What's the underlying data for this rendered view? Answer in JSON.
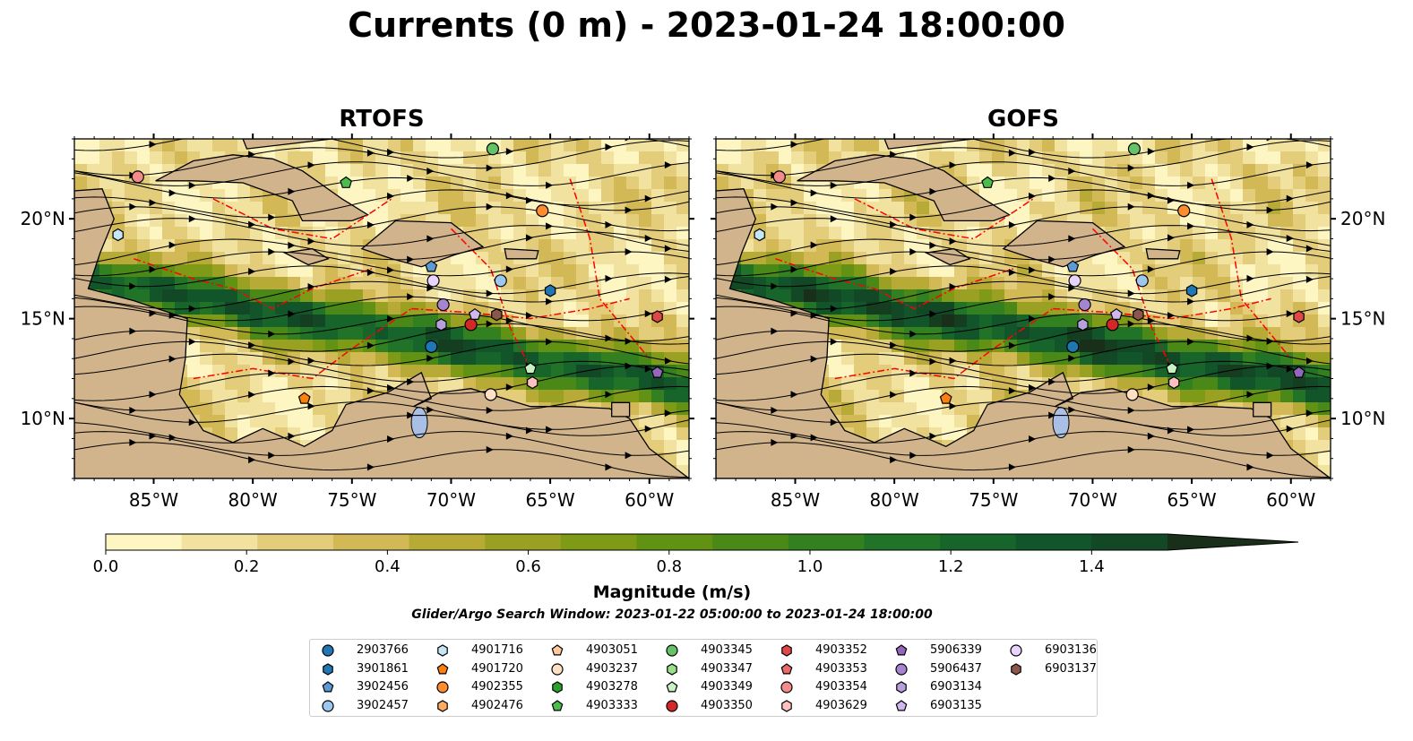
{
  "title": "Currents (0 m) - 2023-01-24 18:00:00",
  "panels": [
    {
      "title": "RTOFS"
    },
    {
      "title": "GOFS"
    }
  ],
  "axes": {
    "lon_ticks": [
      "85°W",
      "80°W",
      "75°W",
      "70°W",
      "65°W",
      "60°W"
    ],
    "lat_ticks": [
      "20°N",
      "15°N",
      "10°N"
    ],
    "lon_range": [
      -89,
      -58
    ],
    "lat_range": [
      7,
      24
    ]
  },
  "colorbar": {
    "title": "Magnitude (m/s)",
    "ticks": [
      "0.0",
      "0.2",
      "0.4",
      "0.6",
      "0.8",
      "1.0",
      "1.2",
      "1.4"
    ],
    "range": [
      0,
      1.5
    ],
    "extend": "max",
    "colors": [
      "#fdf6c3",
      "#f1e2a0",
      "#e3cc7a",
      "#d3b955",
      "#b8aa37",
      "#9aa122",
      "#7e9a17",
      "#629213",
      "#4a8918",
      "#338020",
      "#217328",
      "#17652b",
      "#12552a",
      "#124826",
      "#153d20",
      "#1a2f1a"
    ]
  },
  "search_window": "Glider/Argo Search Window: 2023-01-22 05:00:00 to 2023-01-24 18:00:00",
  "colors": {
    "land": "#d2b48c",
    "water_features": "#a9bfe6",
    "eez": "#ff0000"
  },
  "legend": [
    {
      "id": "2903766",
      "color": "#1f77b4",
      "shape": "circle"
    },
    {
      "id": "3901861",
      "color": "#1f77b4",
      "shape": "hexagon"
    },
    {
      "id": "3902456",
      "color": "#5b9bd5",
      "shape": "pentagon"
    },
    {
      "id": "3902457",
      "color": "#9cc8f0",
      "shape": "circle"
    },
    {
      "id": "4901716",
      "color": "#c6e6f8",
      "shape": "hexagon"
    },
    {
      "id": "4901720",
      "color": "#ff7f0e",
      "shape": "pentagon"
    },
    {
      "id": "4902355",
      "color": "#ff8c2e",
      "shape": "circle"
    },
    {
      "id": "4902476",
      "color": "#ffab60",
      "shape": "hexagon"
    },
    {
      "id": "4903051",
      "color": "#ffc99a",
      "shape": "pentagon"
    },
    {
      "id": "4903237",
      "color": "#ffe0c2",
      "shape": "circle"
    },
    {
      "id": "4903278",
      "color": "#2ca02c",
      "shape": "hexagon"
    },
    {
      "id": "4903333",
      "color": "#4cbd4c",
      "shape": "pentagon"
    },
    {
      "id": "4903345",
      "color": "#66c266",
      "shape": "circle"
    },
    {
      "id": "4903347",
      "color": "#98df8a",
      "shape": "hexagon"
    },
    {
      "id": "4903349",
      "color": "#c8f2c2",
      "shape": "pentagon"
    },
    {
      "id": "4903350",
      "color": "#d62728",
      "shape": "circle"
    },
    {
      "id": "4903352",
      "color": "#e04848",
      "shape": "hexagon"
    },
    {
      "id": "4903353",
      "color": "#ea6a6a",
      "shape": "pentagon"
    },
    {
      "id": "4903354",
      "color": "#f28c8c",
      "shape": "circle"
    },
    {
      "id": "4903629",
      "color": "#ffc0c0",
      "shape": "hexagon"
    },
    {
      "id": "5906339",
      "color": "#9467bd",
      "shape": "pentagon"
    },
    {
      "id": "5906437",
      "color": "#a584d0",
      "shape": "circle"
    },
    {
      "id": "6903134",
      "color": "#b7a0dc",
      "shape": "hexagon"
    },
    {
      "id": "6903135",
      "color": "#d0b8ee",
      "shape": "pentagon"
    },
    {
      "id": "6903136",
      "color": "#e8d4ff",
      "shape": "circle"
    },
    {
      "id": "6903137",
      "color": "#8c564b",
      "shape": "hexagon"
    }
  ],
  "floats": [
    {
      "id": "2903766",
      "lon": -71.0,
      "lat": 13.6
    },
    {
      "id": "3901861",
      "lon": -65.0,
      "lat": 16.4
    },
    {
      "id": "3902456",
      "lon": -71.0,
      "lat": 17.6
    },
    {
      "id": "3902457",
      "lon": -67.5,
      "lat": 16.9
    },
    {
      "id": "4901716",
      "lon": -86.8,
      "lat": 19.2
    },
    {
      "id": "4901720",
      "lon": -77.4,
      "lat": 11.0
    },
    {
      "id": "4902355",
      "lon": -65.4,
      "lat": 20.4
    },
    {
      "id": "4903237",
      "lon": -68.0,
      "lat": 11.2
    },
    {
      "id": "4903333",
      "lon": -75.3,
      "lat": 21.8
    },
    {
      "id": "4903345",
      "lon": -67.9,
      "lat": 23.5
    },
    {
      "id": "4903349",
      "lon": -66.0,
      "lat": 12.5
    },
    {
      "id": "4903350",
      "lon": -69.0,
      "lat": 14.7
    },
    {
      "id": "4903352",
      "lon": -59.6,
      "lat": 15.1
    },
    {
      "id": "4903354",
      "lon": -85.8,
      "lat": 22.1
    },
    {
      "id": "4903629",
      "lon": -65.9,
      "lat": 11.8
    },
    {
      "id": "5906339",
      "lon": -59.6,
      "lat": 12.3
    },
    {
      "id": "5906437",
      "lon": -70.4,
      "lat": 15.7
    },
    {
      "id": "6903134",
      "lon": -70.5,
      "lat": 14.7
    },
    {
      "id": "6903135",
      "lon": -68.8,
      "lat": 15.2
    },
    {
      "id": "6903136",
      "lon": -70.9,
      "lat": 16.9
    },
    {
      "id": "6903137",
      "lon": -67.7,
      "lat": 15.2
    }
  ]
}
